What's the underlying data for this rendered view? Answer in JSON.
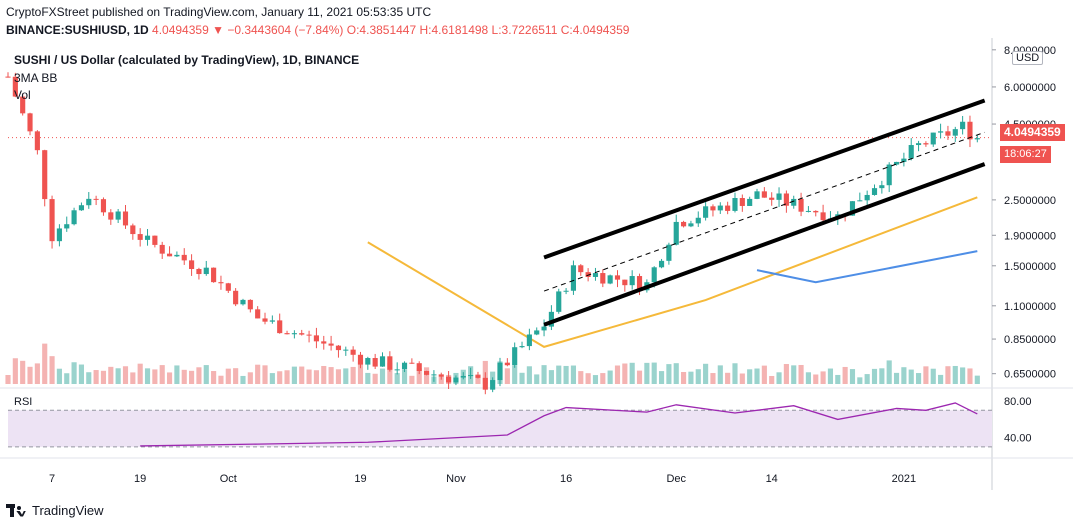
{
  "header": {
    "line1": "CryptoFXStreet published on TradingView.com, January 11, 2021 05:53:35 UTC",
    "symbol": "BINANCE:SUSHIUSD, 1D",
    "last": "4.0494359",
    "change": "▼ −0.3443604 (−7.84%)",
    "ohlc": "O:4.3851447 H:4.6181498 L:3.7226511 C:4.0494359"
  },
  "legend": {
    "title": "SUSHI / US Dollar (calculated by TradingView), 1D, BINANCE",
    "ma_bb": "3MA BB",
    "vol": "Vol"
  },
  "price_axis": {
    "currency": "USD",
    "last_price": "4.0494359",
    "countdown": "18:06:27"
  },
  "rsi": {
    "label": "RSI"
  },
  "footer": {
    "brand": "TradingView"
  },
  "colors": {
    "up": "#26a69a",
    "down": "#ef5350",
    "ma_short": "#f5b93a",
    "ma_long": "#4e8ee6",
    "rsi": "#9c27b0",
    "channel": "#000000"
  },
  "chart_data": [
    {
      "type": "candlestick",
      "title": "SUSHI / US Dollar (calculated by TradingView), 1D, BINANCE",
      "y_scale": "log",
      "y_ticks": [
        "8.0000000",
        "6.0000000",
        "4.5000000",
        "2.5000000",
        "1.9000000",
        "1.5000000",
        "1.1000000",
        "0.8500000",
        "0.6500000"
      ],
      "x_ticks": [
        "7",
        "19",
        "Oct",
        "19",
        "Nov",
        "16",
        "Dec",
        "14",
        "2021"
      ],
      "x_range": [
        "2020-09-01",
        "2021-01-11"
      ],
      "last_close": 4.0494359,
      "ohlc_points": [
        {
          "date": "2020-09-01",
          "close": 6.5
        },
        {
          "date": "2020-09-05",
          "close": 3.6
        },
        {
          "date": "2020-09-07",
          "close": 1.9
        },
        {
          "date": "2020-09-12",
          "close": 2.6
        },
        {
          "date": "2020-09-20",
          "close": 1.8
        },
        {
          "date": "2020-09-28",
          "close": 1.45
        },
        {
          "date": "2020-10-05",
          "close": 1.0
        },
        {
          "date": "2020-10-20",
          "close": 0.72
        },
        {
          "date": "2020-11-05",
          "close": 0.6
        },
        {
          "date": "2020-11-13",
          "close": 0.95
        },
        {
          "date": "2020-11-17",
          "close": 1.45
        },
        {
          "date": "2020-11-27",
          "close": 1.3
        },
        {
          "date": "2020-12-01",
          "close": 2.1
        },
        {
          "date": "2020-12-12",
          "close": 2.6
        },
        {
          "date": "2020-12-23",
          "close": 2.2
        },
        {
          "date": "2021-01-03",
          "close": 3.8
        },
        {
          "date": "2021-01-09",
          "close": 4.4
        },
        {
          "date": "2021-01-11",
          "close": 4.0494359
        }
      ],
      "series": [
        {
          "name": "MA short",
          "values": [
            [
              "2020-10-20",
              1.8
            ],
            [
              "2020-11-13",
              0.8
            ],
            [
              "2020-12-05",
              1.15
            ],
            [
              "2021-01-11",
              2.55
            ]
          ]
        },
        {
          "name": "MA long",
          "values": [
            [
              "2020-12-12",
              1.45
            ],
            [
              "2020-12-20",
              1.32
            ],
            [
              "2021-01-11",
              1.68
            ]
          ]
        }
      ],
      "channel": {
        "upper": [
          [
            "2020-11-13",
            1.6
          ],
          [
            "2021-01-12",
            5.4
          ]
        ],
        "lower": [
          [
            "2020-11-13",
            0.95
          ],
          [
            "2021-01-12",
            3.3
          ]
        ]
      }
    },
    {
      "type": "line",
      "title": "RSI",
      "y_ticks": [
        "80.00",
        "40.00"
      ],
      "band": [
        30,
        70
      ],
      "values": [
        [
          "2020-09-19",
          31
        ],
        [
          "2020-10-05",
          33
        ],
        [
          "2020-10-20",
          35
        ],
        [
          "2020-11-08",
          43
        ],
        [
          "2020-11-13",
          64
        ],
        [
          "2020-11-16",
          73
        ],
        [
          "2020-11-27",
          68
        ],
        [
          "2020-12-01",
          76
        ],
        [
          "2020-12-09",
          67
        ],
        [
          "2020-12-17",
          75
        ],
        [
          "2020-12-23",
          60
        ],
        [
          "2020-12-31",
          72
        ],
        [
          "2021-01-04",
          70
        ],
        [
          "2021-01-08",
          78
        ],
        [
          "2021-01-11",
          66
        ]
      ]
    }
  ]
}
